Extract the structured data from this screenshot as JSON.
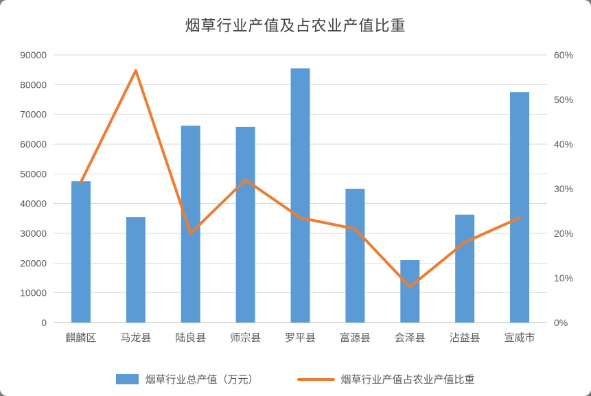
{
  "chart_data": {
    "type": "combo",
    "title": "烟草行业产值及占农业产值比重",
    "categories": [
      "麒麟区",
      "马龙县",
      "陆良县",
      "师宗县",
      "罗平县",
      "富源县",
      "会泽县",
      "沾益县",
      "宣威市"
    ],
    "series": [
      {
        "name": "烟草行业总产值（万元）",
        "type": "bar",
        "axis": "left",
        "color": "#5B9BD5",
        "values": [
          47500,
          35500,
          66200,
          65800,
          85500,
          45000,
          21000,
          36300,
          77500
        ]
      },
      {
        "name": "烟草行业产值占农业产值比重",
        "type": "line",
        "axis": "right",
        "color": "#ED7D31",
        "values": [
          31.5,
          56.5,
          20,
          32,
          23.5,
          21,
          8,
          18,
          23.5
        ]
      }
    ],
    "left_axis": {
      "min": 0,
      "max": 90000,
      "step": 10000,
      "ticks": [
        "0",
        "10000",
        "20000",
        "30000",
        "40000",
        "50000",
        "60000",
        "70000",
        "80000",
        "90000"
      ]
    },
    "right_axis": {
      "min": 0,
      "max": 60,
      "step": 10,
      "ticks": [
        "0%",
        "10%",
        "20%",
        "30%",
        "40%",
        "50%",
        "60%"
      ]
    },
    "grid": true,
    "legend_position": "bottom",
    "colors": {
      "gridline": "#D9D9D9",
      "axis_line": "#BFBFBF",
      "tick_text": "#595959",
      "title_text": "#404040",
      "background": "#FFFFFF"
    }
  }
}
